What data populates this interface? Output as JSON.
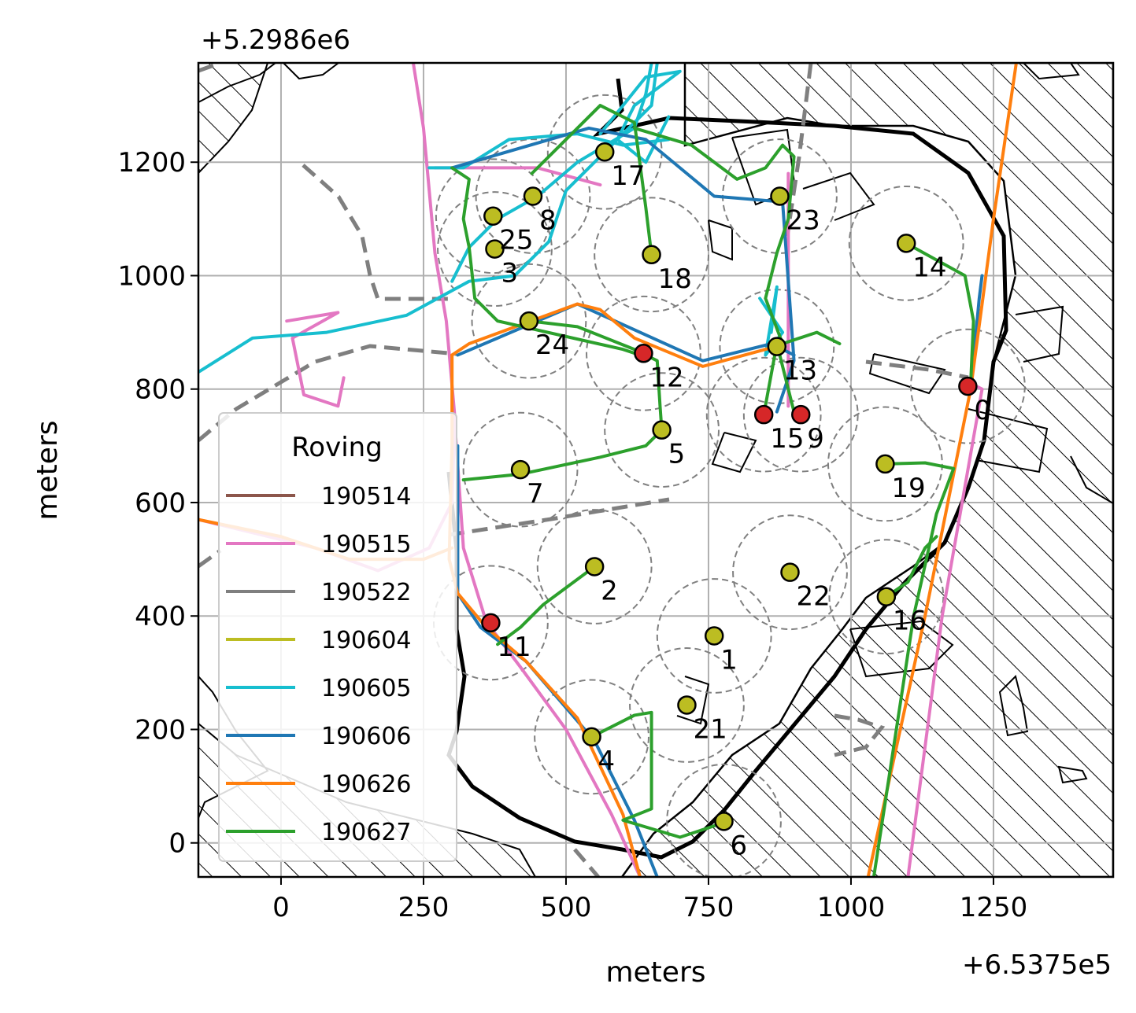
{
  "chart_data": {
    "type": "scatter",
    "xlabel": "meters",
    "ylabel": "meters",
    "x_offset_label": "+6.5375e5",
    "y_offset_label": "+5.2986e6",
    "xlim": [
      -145,
      1460
    ],
    "ylim": [
      -60,
      1375
    ],
    "x_ticks": [
      0,
      250,
      500,
      750,
      1000,
      1250
    ],
    "y_ticks": [
      0,
      200,
      400,
      600,
      800,
      1000,
      1200
    ],
    "x_tick_labels": [
      "0",
      "250",
      "500",
      "750",
      "1000",
      "1250"
    ],
    "y_tick_labels": [
      "0",
      "200",
      "400",
      "600",
      "800",
      "1000",
      "1200"
    ],
    "grid": true,
    "legend": {
      "title": "Roving",
      "placement": "lower-left",
      "entries": [
        {
          "name": "190514",
          "color": "#8c564b"
        },
        {
          "name": "190515",
          "color": "#e377c2"
        },
        {
          "name": "190522",
          "color": "#7f7f7f"
        },
        {
          "name": "190604",
          "color": "#bcbd22"
        },
        {
          "name": "190605",
          "color": "#17becf"
        },
        {
          "name": "190606",
          "color": "#1f77b4"
        },
        {
          "name": "190626",
          "color": "#ff7f0e"
        },
        {
          "name": "190627",
          "color": "#2ca02c"
        }
      ]
    },
    "site_fill_colors": {
      "active": "#bcbd22",
      "base": "#d62728"
    },
    "sites": [
      {
        "label": "0",
        "x": 1205,
        "y": 805,
        "kind": "base"
      },
      {
        "label": "1",
        "x": 760,
        "y": 365,
        "kind": "active"
      },
      {
        "label": "2",
        "x": 550,
        "y": 487,
        "kind": "active"
      },
      {
        "label": "3",
        "x": 375,
        "y": 1047,
        "kind": "active"
      },
      {
        "label": "4",
        "x": 545,
        "y": 187,
        "kind": "active"
      },
      {
        "label": "5",
        "x": 668,
        "y": 728,
        "kind": "active"
      },
      {
        "label": "6",
        "x": 777,
        "y": 38,
        "kind": "active"
      },
      {
        "label": "7",
        "x": 420,
        "y": 658,
        "kind": "active"
      },
      {
        "label": "8",
        "x": 442,
        "y": 1140,
        "kind": "active"
      },
      {
        "label": "9",
        "x": 912,
        "y": 755,
        "kind": "base"
      },
      {
        "label": "11",
        "x": 368,
        "y": 388,
        "kind": "base"
      },
      {
        "label": "12",
        "x": 636,
        "y": 863,
        "kind": "base"
      },
      {
        "label": "13",
        "x": 870,
        "y": 875,
        "kind": "active"
      },
      {
        "label": "14",
        "x": 1097,
        "y": 1057,
        "kind": "active"
      },
      {
        "label": "15",
        "x": 847,
        "y": 755,
        "kind": "base"
      },
      {
        "label": "16",
        "x": 1062,
        "y": 434,
        "kind": "active"
      },
      {
        "label": "17",
        "x": 568,
        "y": 1218,
        "kind": "active"
      },
      {
        "label": "18",
        "x": 650,
        "y": 1037,
        "kind": "active"
      },
      {
        "label": "19",
        "x": 1060,
        "y": 668,
        "kind": "active"
      },
      {
        "label": "21",
        "x": 712,
        "y": 243,
        "kind": "active"
      },
      {
        "label": "22",
        "x": 893,
        "y": 477,
        "kind": "active"
      },
      {
        "label": "23",
        "x": 875,
        "y": 1140,
        "kind": "active"
      },
      {
        "label": "24",
        "x": 435,
        "y": 920,
        "kind": "active"
      },
      {
        "label": "25",
        "x": 372,
        "y": 1105,
        "kind": "active"
      }
    ],
    "site_radius": 100,
    "series": [
      {
        "name": "190515",
        "color": "#e377c2",
        "points": [
          [
            232,
            1375
          ],
          [
            250,
            1260
          ],
          [
            270,
            1040
          ],
          [
            290,
            920
          ],
          [
            305,
            750
          ],
          [
            300,
            600
          ],
          [
            260,
            520
          ],
          [
            170,
            480
          ],
          [
            60,
            520
          ],
          [
            -145,
            570
          ]
        ]
      },
      {
        "name": "190515",
        "color": "#e377c2",
        "points": [
          [
            305,
            740
          ],
          [
            320,
            520
          ],
          [
            360,
            390
          ],
          [
            420,
            310
          ],
          [
            500,
            200
          ],
          [
            580,
            50
          ],
          [
            630,
            -60
          ]
        ]
      },
      {
        "name": "190515",
        "color": "#e377c2",
        "points": [
          [
            270,
            1190
          ],
          [
            450,
            1190
          ],
          [
            560,
            1160
          ]
        ]
      },
      {
        "name": "190515",
        "color": "#e377c2",
        "points": [
          [
            10,
            920
          ],
          [
            100,
            935
          ],
          [
            20,
            890
          ],
          [
            40,
            790
          ],
          [
            100,
            770
          ],
          [
            110,
            820
          ]
        ]
      },
      {
        "name": "190515",
        "color": "#e377c2",
        "points": [
          [
            890,
            1180
          ],
          [
            890,
            770
          ]
        ]
      },
      {
        "name": "190515",
        "color": "#e377c2",
        "points": [
          [
            1210,
            810
          ],
          [
            1230,
            800
          ],
          [
            1160,
            400
          ],
          [
            1100,
            -60
          ]
        ]
      },
      {
        "name": "190605",
        "color": "#17becf",
        "points": [
          [
            -145,
            830
          ],
          [
            -50,
            890
          ],
          [
            80,
            900
          ],
          [
            220,
            930
          ],
          [
            330,
            990
          ],
          [
            410,
            1000
          ],
          [
            470,
            1060
          ],
          [
            500,
            1150
          ],
          [
            570,
            1220
          ],
          [
            650,
            1300
          ],
          [
            660,
            1375
          ]
        ]
      },
      {
        "name": "190605",
        "color": "#17becf",
        "points": [
          [
            260,
            1190
          ],
          [
            320,
            1190
          ],
          [
            400,
            1240
          ],
          [
            520,
            1250
          ],
          [
            600,
            1230
          ],
          [
            680,
            1240
          ]
        ]
      },
      {
        "name": "190605",
        "color": "#17becf",
        "points": [
          [
            300,
            990
          ],
          [
            330,
            1050
          ],
          [
            380,
            1100
          ],
          [
            450,
            1140
          ],
          [
            520,
            1200
          ],
          [
            620,
            1260
          ],
          [
            640,
            1320
          ],
          [
            650,
            1375
          ]
        ]
      },
      {
        "name": "190605",
        "color": "#17becf",
        "points": [
          [
            560,
            1250
          ],
          [
            600,
            1300
          ],
          [
            640,
            1350
          ],
          [
            700,
            1360
          ],
          [
            620,
            1300
          ],
          [
            590,
            1240
          ],
          [
            640,
            1200
          ],
          [
            680,
            1280
          ]
        ]
      },
      {
        "name": "190605",
        "color": "#17becf",
        "points": [
          [
            840,
            960
          ],
          [
            880,
            900
          ],
          [
            850,
            860
          ],
          [
            870,
            980
          ],
          [
            860,
            900
          ]
        ]
      },
      {
        "name": "190606",
        "color": "#1f77b4",
        "points": [
          [
            300,
            1190
          ],
          [
            540,
            1260
          ],
          [
            640,
            1240
          ],
          [
            760,
            1140
          ],
          [
            880,
            1130
          ],
          [
            900,
            850
          ],
          [
            880,
            790
          ],
          [
            870,
            760
          ]
        ]
      },
      {
        "name": "190606",
        "color": "#1f77b4",
        "points": [
          [
            310,
            860
          ],
          [
            520,
            950
          ],
          [
            740,
            850
          ],
          [
            860,
            880
          ],
          [
            900,
            860
          ]
        ]
      },
      {
        "name": "190606",
        "color": "#1f77b4",
        "points": [
          [
            310,
            700
          ],
          [
            310,
            440
          ],
          [
            350,
            380
          ],
          [
            430,
            320
          ],
          [
            550,
            180
          ],
          [
            620,
            40
          ],
          [
            660,
            -60
          ]
        ]
      },
      {
        "name": "190606",
        "color": "#1f77b4",
        "points": [
          [
            1210,
            800
          ],
          [
            1225,
            960
          ],
          [
            1230,
            1000
          ]
        ]
      },
      {
        "name": "190626",
        "color": "#ff7f0e",
        "points": [
          [
            300,
            860
          ],
          [
            330,
            880
          ],
          [
            520,
            950
          ],
          [
            560,
            940
          ],
          [
            620,
            890
          ],
          [
            740,
            840
          ],
          [
            850,
            870
          ],
          [
            880,
            880
          ]
        ]
      },
      {
        "name": "190626",
        "color": "#ff7f0e",
        "points": [
          [
            300,
            860
          ],
          [
            300,
            700
          ],
          [
            295,
            500
          ],
          [
            310,
            440
          ],
          [
            360,
            380
          ],
          [
            430,
            320
          ],
          [
            520,
            220
          ],
          [
            600,
            50
          ],
          [
            630,
            -60
          ]
        ]
      },
      {
        "name": "190626",
        "color": "#ff7f0e",
        "points": [
          [
            -145,
            570
          ],
          [
            0,
            540
          ],
          [
            120,
            500
          ],
          [
            250,
            500
          ],
          [
            300,
            520
          ]
        ]
      },
      {
        "name": "190626",
        "color": "#ff7f0e",
        "points": [
          [
            1030,
            -60
          ],
          [
            1130,
            400
          ],
          [
            1210,
            800
          ],
          [
            1250,
            1100
          ],
          [
            1290,
            1375
          ]
        ]
      },
      {
        "name": "190627",
        "color": "#2ca02c",
        "points": [
          [
            300,
            1190
          ],
          [
            330,
            1170
          ],
          [
            320,
            1100
          ],
          [
            330,
            1050
          ],
          [
            340,
            960
          ],
          [
            380,
            920
          ],
          [
            600,
            870
          ],
          [
            630,
            860
          ]
        ]
      },
      {
        "name": "190627",
        "color": "#2ca02c",
        "points": [
          [
            435,
            920
          ],
          [
            520,
            910
          ],
          [
            620,
            870
          ],
          [
            660,
            850
          ],
          [
            665,
            770
          ],
          [
            668,
            728
          ]
        ]
      },
      {
        "name": "190627",
        "color": "#2ca02c",
        "points": [
          [
            320,
            640
          ],
          [
            420,
            650
          ],
          [
            560,
            680
          ],
          [
            640,
            700
          ],
          [
            668,
            728
          ]
        ]
      },
      {
        "name": "190627",
        "color": "#2ca02c",
        "points": [
          [
            550,
            487
          ],
          [
            460,
            420
          ],
          [
            420,
            380
          ],
          [
            380,
            350
          ]
        ]
      },
      {
        "name": "190627",
        "color": "#2ca02c",
        "points": [
          [
            545,
            187
          ],
          [
            620,
            225
          ],
          [
            650,
            230
          ],
          [
            650,
            60
          ],
          [
            600,
            40
          ],
          [
            700,
            10
          ],
          [
            760,
            30
          ],
          [
            777,
            38
          ]
        ]
      },
      {
        "name": "190627",
        "color": "#2ca02c",
        "points": [
          [
            440,
            1180
          ],
          [
            520,
            1260
          ],
          [
            560,
            1300
          ],
          [
            620,
            1270
          ],
          [
            640,
            1120
          ],
          [
            650,
            1037
          ]
        ]
      },
      {
        "name": "190627",
        "color": "#2ca02c",
        "points": [
          [
            620,
            1260
          ],
          [
            720,
            1230
          ],
          [
            800,
            1170
          ],
          [
            850,
            1190
          ],
          [
            880,
            1230
          ],
          [
            900,
            1210
          ],
          [
            890,
            1100
          ],
          [
            870,
            1040
          ],
          [
            850,
            960
          ],
          [
            880,
            880
          ],
          [
            940,
            900
          ],
          [
            980,
            880
          ]
        ]
      },
      {
        "name": "190627",
        "color": "#2ca02c",
        "points": [
          [
            847,
            755
          ],
          [
            870,
            880
          ],
          [
            900,
            760
          ]
        ]
      },
      {
        "name": "190627",
        "color": "#2ca02c",
        "points": [
          [
            1097,
            1057
          ],
          [
            1200,
            1000
          ],
          [
            1215,
            920
          ],
          [
            1210,
            810
          ]
        ]
      },
      {
        "name": "190627",
        "color": "#2ca02c",
        "points": [
          [
            1040,
            -60
          ],
          [
            1110,
            400
          ],
          [
            1150,
            580
          ],
          [
            1180,
            660
          ],
          [
            1130,
            670
          ],
          [
            1060,
            668
          ]
        ]
      },
      {
        "name": "190627",
        "color": "#2ca02c",
        "points": [
          [
            1062,
            434
          ],
          [
            1100,
            460
          ],
          [
            1130,
            520
          ],
          [
            1150,
            540
          ]
        ]
      }
    ]
  }
}
